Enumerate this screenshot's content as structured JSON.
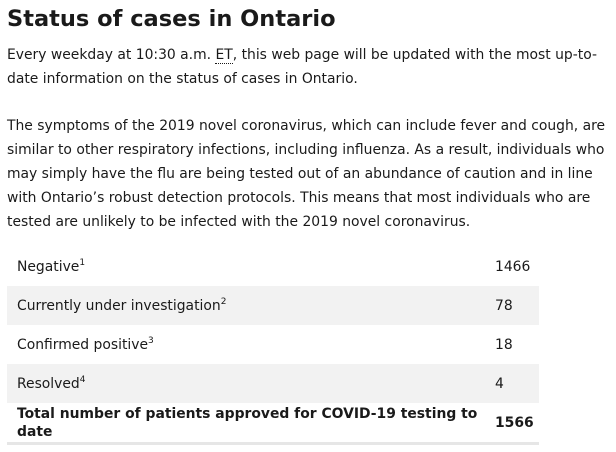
{
  "page": {
    "title": "Status of cases in Ontario",
    "intro": {
      "before_abbr": "Every weekday at 10:30 a.m. ",
      "abbr": "ET",
      "after_abbr": ", this web page will be updated with the most up-to-date information on the status of cases in Ontario."
    },
    "symptoms_paragraph": "The symptoms of the 2019 novel coronavirus, which can include fever and cough, are similar to other respiratory infections, including influenza. As a result, individuals who may simply have the flu are being tested out of an abundance of caution and in line with Ontario’s robust detection protocols. This means that most individuals who are tested are unlikely to be infected with the 2019 novel coronavirus."
  },
  "cases_table": {
    "rows": [
      {
        "label": "Negative",
        "footnote": "1",
        "value": "1466"
      },
      {
        "label": "Currently under investigation",
        "footnote": "2",
        "value": "78"
      },
      {
        "label": "Confirmed positive",
        "footnote": "3",
        "value": "18"
      },
      {
        "label": "Resolved",
        "footnote": "4",
        "value": "4"
      }
    ],
    "total": {
      "label": "Total number of patients approved for COVID-19 testing to date",
      "value": "1566"
    }
  }
}
